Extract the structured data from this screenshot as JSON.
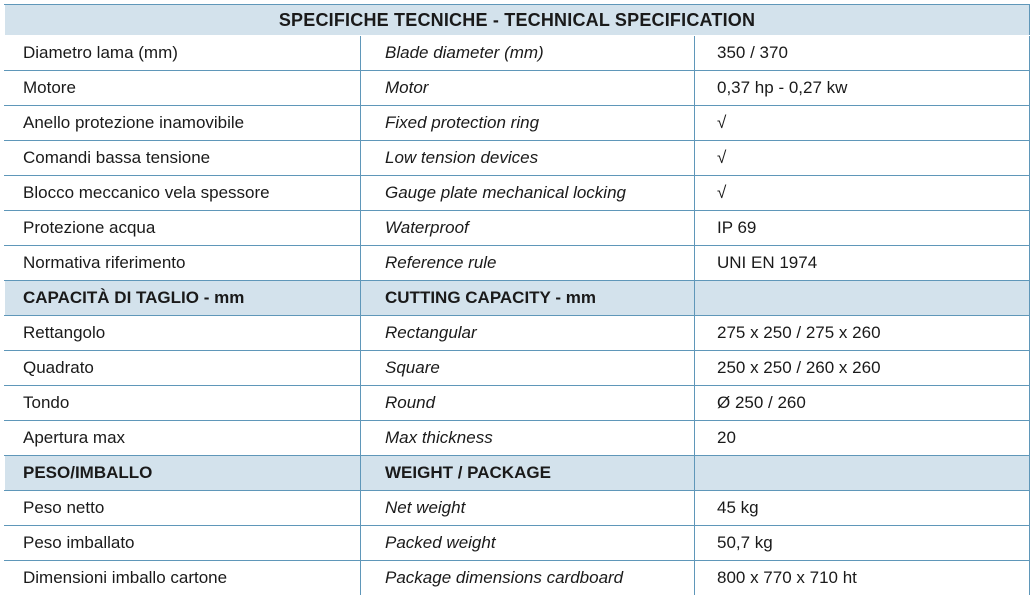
{
  "title": "SPECIFICHE TECNICHE - TECHNICAL SPECIFICATION",
  "general": [
    {
      "it": "Diametro lama (mm)",
      "en": "Blade diameter (mm)",
      "value": "350 / 370"
    },
    {
      "it": "Motore",
      "en": "Motor",
      "value": "0,37 hp - 0,27 kw"
    },
    {
      "it": "Anello protezione inamovibile",
      "en": "Fixed protection ring",
      "value": "√"
    },
    {
      "it": "Comandi bassa tensione",
      "en": "Low tension devices",
      "value": "√"
    },
    {
      "it": "Blocco meccanico vela spessore",
      "en": "Gauge plate mechanical locking",
      "value": "√"
    },
    {
      "it": "Protezione acqua",
      "en": "Waterproof",
      "value": "IP 69"
    },
    {
      "it": "Normativa riferimento",
      "en": "Reference rule",
      "value": "UNI EN 1974"
    }
  ],
  "cutting": {
    "header_it": "CAPACITÀ DI TAGLIO - mm",
    "header_en": "CUTTING CAPACITY - mm",
    "rows": [
      {
        "it": "Rettangolo",
        "en": "Rectangular",
        "value": "275 x 250 / 275 x 260"
      },
      {
        "it": "Quadrato",
        "en": "Square",
        "value": "250 x 250 / 260 x 260"
      },
      {
        "it": "Tondo",
        "en": "Round",
        "value": "Ø 250 / 260"
      },
      {
        "it": "Apertura max",
        "en": "Max thickness",
        "value": "20"
      }
    ]
  },
  "weight": {
    "header_it": "PESO/IMBALLO",
    "header_en": "WEIGHT / PACKAGE",
    "rows": [
      {
        "it": "Peso netto",
        "en": "Net weight",
        "value": "45 kg"
      },
      {
        "it": "Peso imballato",
        "en": "Packed weight",
        "value": "50,7 kg"
      },
      {
        "it": "Dimensioni imballo cartone",
        "en": "Package dimensions cardboard",
        "value": "800 x 770 x 710 ht"
      }
    ]
  },
  "colors": {
    "header_bg": "#d3e2ec",
    "border": "#5f97b9"
  }
}
